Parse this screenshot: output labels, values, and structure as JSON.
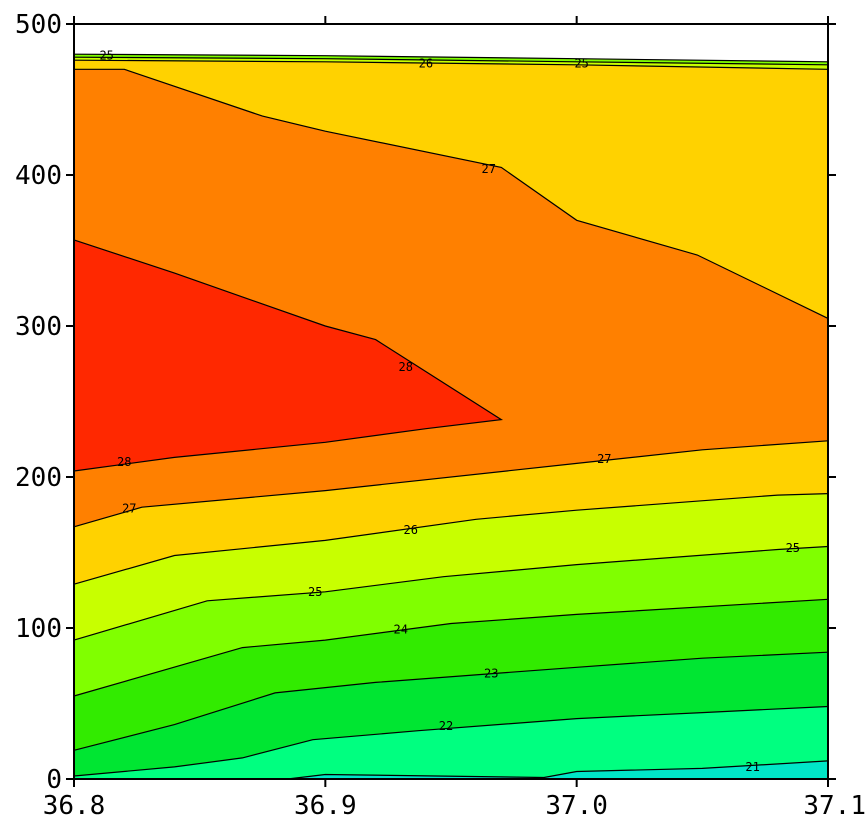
{
  "chart_data": {
    "type": "contour",
    "title": "",
    "xlabel": "",
    "ylabel": "",
    "xlim": [
      36.8,
      37.1
    ],
    "ylim": [
      0,
      500
    ],
    "x_ticks": [
      "36.8",
      "36.9",
      "37.0",
      "37.1"
    ],
    "y_ticks": [
      "0",
      "100",
      "200",
      "300",
      "400",
      "500"
    ],
    "bands": [
      {
        "level": "<21",
        "color": "#00e6c8",
        "upper": [
          [
            36.8,
            0
          ],
          [
            36.885,
            0
          ],
          [
            36.9,
            3
          ],
          [
            36.987,
            1
          ],
          [
            37.0,
            5
          ],
          [
            37.05,
            7
          ],
          [
            37.1,
            12
          ]
        ]
      },
      {
        "level": "21-22",
        "color": "#00ff80",
        "upper": [
          [
            36.8,
            2
          ],
          [
            36.84,
            8
          ],
          [
            36.867,
            14
          ],
          [
            36.895,
            26
          ],
          [
            36.937,
            32
          ],
          [
            37.0,
            40
          ],
          [
            37.05,
            44
          ],
          [
            37.1,
            48
          ]
        ]
      },
      {
        "level": "22-23",
        "color": "#00e632",
        "upper": [
          [
            36.8,
            19
          ],
          [
            36.84,
            36
          ],
          [
            36.88,
            57
          ],
          [
            36.92,
            64
          ],
          [
            37.0,
            74
          ],
          [
            37.05,
            80
          ],
          [
            37.1,
            84
          ]
        ]
      },
      {
        "level": "23-24",
        "color": "#32eb00",
        "upper": [
          [
            36.8,
            55
          ],
          [
            36.867,
            87
          ],
          [
            36.9,
            92
          ],
          [
            36.95,
            103
          ],
          [
            37.0,
            109
          ],
          [
            37.1,
            119
          ]
        ]
      },
      {
        "level": "24-25",
        "color": "#80ff00",
        "upper": [
          [
            36.8,
            92
          ],
          [
            36.853,
            118
          ],
          [
            36.9,
            124
          ],
          [
            36.947,
            134
          ],
          [
            37.0,
            142
          ],
          [
            37.08,
            152
          ],
          [
            37.1,
            154
          ]
        ]
      },
      {
        "level": "25-26",
        "color": "#c8ff00",
        "upper": [
          [
            36.8,
            129
          ],
          [
            36.84,
            148
          ],
          [
            36.9,
            158
          ],
          [
            36.96,
            172
          ],
          [
            37.0,
            178
          ],
          [
            37.08,
            188
          ],
          [
            37.1,
            189
          ]
        ]
      },
      {
        "level": "26-27",
        "color": "#ffd200",
        "upper": [
          [
            36.8,
            167
          ],
          [
            36.827,
            180
          ],
          [
            36.9,
            191
          ],
          [
            37.0,
            209
          ],
          [
            37.05,
            218
          ],
          [
            37.1,
            224
          ]
        ]
      },
      {
        "level": "27-28",
        "color": "#ff8000",
        "upper": [
          [
            36.8,
            204
          ],
          [
            36.84,
            213
          ],
          [
            36.9,
            223
          ],
          [
            36.94,
            232
          ],
          [
            36.97,
            238
          ],
          [
            36.92,
            291
          ],
          [
            36.9,
            300
          ],
          [
            36.84,
            335
          ],
          [
            36.8,
            357
          ]
        ]
      },
      {
        "level": ">28",
        "color": "#ff2800",
        "upper": [
          [
            36.8,
            204
          ],
          [
            36.84,
            213
          ],
          [
            36.9,
            223
          ],
          [
            36.94,
            232
          ],
          [
            36.97,
            238
          ],
          [
            36.92,
            291
          ],
          [
            36.9,
            300
          ],
          [
            36.84,
            335
          ],
          [
            36.8,
            357
          ]
        ]
      },
      {
        "level": "27-28 top",
        "color": "#ff8000",
        "upper": [
          [
            36.8,
            470
          ],
          [
            36.82,
            470
          ],
          [
            36.875,
            439
          ],
          [
            36.9,
            429
          ],
          [
            36.97,
            405
          ],
          [
            37.0,
            370
          ],
          [
            37.048,
            347
          ],
          [
            37.1,
            305
          ]
        ]
      },
      {
        "level": "26-27 top",
        "color": "#ffd200",
        "upper": [
          [
            36.8,
            476
          ],
          [
            36.9,
            475
          ],
          [
            37.0,
            473
          ],
          [
            37.1,
            470
          ]
        ]
      },
      {
        "level": "25-26 top",
        "color": "#c8ff00",
        "upper": [
          [
            36.8,
            478
          ],
          [
            36.9,
            477
          ],
          [
            37.0,
            475
          ],
          [
            37.1,
            473
          ]
        ]
      },
      {
        "level": "24-25 top",
        "color": "#80ff00",
        "upper": [
          [
            36.8,
            480
          ],
          [
            36.9,
            479
          ],
          [
            37.0,
            477
          ],
          [
            37.1,
            475
          ]
        ]
      }
    ],
    "contour_labels": [
      {
        "text": "21",
        "x": 37.07,
        "y": 8
      },
      {
        "text": "22",
        "x": 36.948,
        "y": 35
      },
      {
        "text": "23",
        "x": 36.966,
        "y": 70
      },
      {
        "text": "24",
        "x": 36.93,
        "y": 99
      },
      {
        "text": "25",
        "x": 36.896,
        "y": 124
      },
      {
        "text": "25",
        "x": 37.086,
        "y": 153
      },
      {
        "text": "26",
        "x": 36.934,
        "y": 165
      },
      {
        "text": "27",
        "x": 36.822,
        "y": 179
      },
      {
        "text": "27",
        "x": 37.011,
        "y": 212
      },
      {
        "text": "28",
        "x": 36.82,
        "y": 210
      },
      {
        "text": "28",
        "x": 36.932,
        "y": 273
      },
      {
        "text": "27",
        "x": 36.965,
        "y": 404
      },
      {
        "text": "26",
        "x": 36.94,
        "y": 474
      },
      {
        "text": "25",
        "x": 37.002,
        "y": 474
      },
      {
        "text": "25",
        "x": 36.813,
        "y": 479
      }
    ]
  }
}
